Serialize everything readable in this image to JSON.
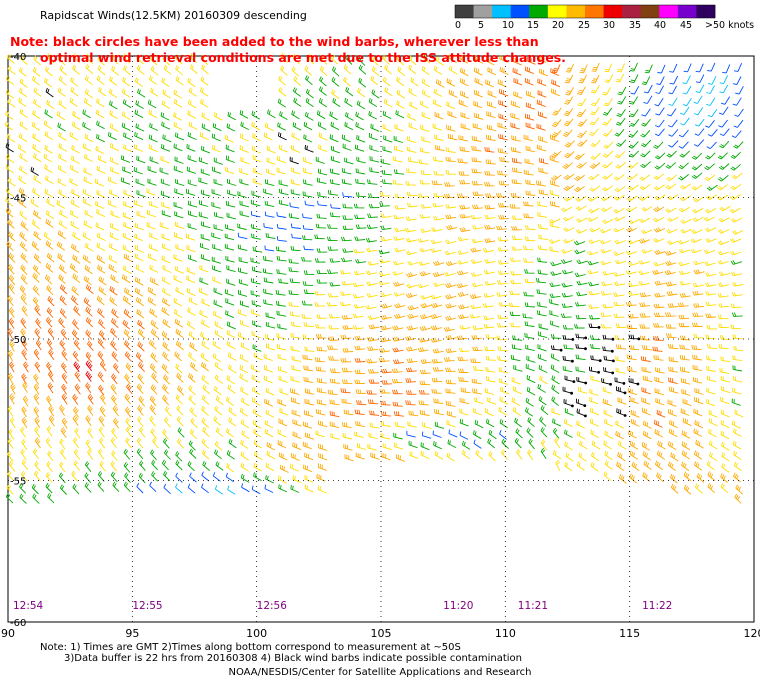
{
  "title": "Rapidscat Winds(12.5KM) 20160309 descending",
  "note": {
    "line1": "Note: black circles have been added to the wind barbs, wherever less than",
    "line2": "optimal wind retrieval conditions are met due to the ISS attitude changes."
  },
  "legend": {
    "ticks": [
      "0",
      "5",
      "10",
      "15",
      "20",
      "25",
      "30",
      "35",
      "40",
      "45",
      ">50 knots"
    ],
    "colors": [
      "#404040",
      "#a0a0a0",
      "#00c0ff",
      "#0050ff",
      "#00aa00",
      "#ffff00",
      "#ffbb00",
      "#ff7700",
      "#ee0000",
      "#aa2040",
      "#804010",
      "#ff00ff",
      "#7700cc",
      "#300060"
    ]
  },
  "axes": {
    "longitudes": [
      "90",
      "95",
      "100",
      "105",
      "110",
      "115",
      "120"
    ],
    "latitudes": [
      "-40",
      "-45",
      "-50",
      "-55",
      "-60"
    ]
  },
  "time_labels": [
    {
      "text": "12:54",
      "lon": 90.2
    },
    {
      "text": "12:55",
      "lon": 95.0
    },
    {
      "text": "12:56",
      "lon": 100.0
    },
    {
      "text": "11:20",
      "lon": 107.5
    },
    {
      "text": "11:21",
      "lon": 110.5
    },
    {
      "text": "11:22",
      "lon": 115.5
    }
  ],
  "bottom_notes": {
    "line1": "Note: 1) Times are GMT 2)Times along bottom correspond to measurement at ~50S",
    "line2": "3)Data buffer is 22 hrs from 20160308 4) Black wind barbs indicate possible contamination"
  },
  "credit": "NOAA/NESDIS/Center for Satellite Applications and Research"
}
